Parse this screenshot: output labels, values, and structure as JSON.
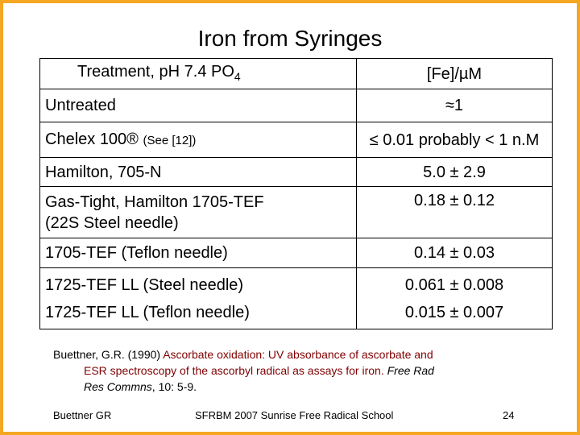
{
  "title": "Iron from Syringes",
  "table": {
    "header": {
      "treatment": "Treatment, pH 7.4  PO",
      "treatment_sub": "4",
      "fe": "[Fe]/µM"
    },
    "rows": [
      {
        "treatment": "Untreated",
        "fe": "≈1"
      },
      {
        "treatment": "Chelex 100®",
        "note": "(See [12])",
        "fe": "≤ 0.01  probably < 1 n.M"
      },
      {
        "treatment": "Hamilton, 705-N",
        "fe": "5.0 ± 2.9"
      },
      {
        "treatment": "Gas-Tight, Hamilton 1705-TEF",
        "treatment2": "(22S Steel needle)",
        "fe": "0.18 ± 0.12"
      },
      {
        "treatment": "1705-TEF (Teflon needle)",
        "fe": "0.14 ± 0.03"
      },
      {
        "treatment": "1725-TEF LL (Steel needle)",
        "treatment2": "1725-TEF LL (Teflon needle)",
        "fe": "0.061 ± 0.008",
        "fe2": "0.015 ± 0.007"
      }
    ]
  },
  "reference": {
    "author": "Buettner, G.R. (1990) ",
    "title_part1": "Ascorbate oxidation:  UV absorbance of ascorbate and",
    "title_part2": "ESR spectroscopy of the ascorbyl radical as assays for iron.  ",
    "journal": "Free Rad",
    "journal2": "Res Commns",
    "volume": ", 10: 5-9."
  },
  "footer": {
    "left": "Buettner  GR",
    "center": "SFRBM 2007   Sunrise Free Radical School",
    "page": "24"
  },
  "colors": {
    "border": "#f5a623",
    "reference_title": "#800000"
  }
}
